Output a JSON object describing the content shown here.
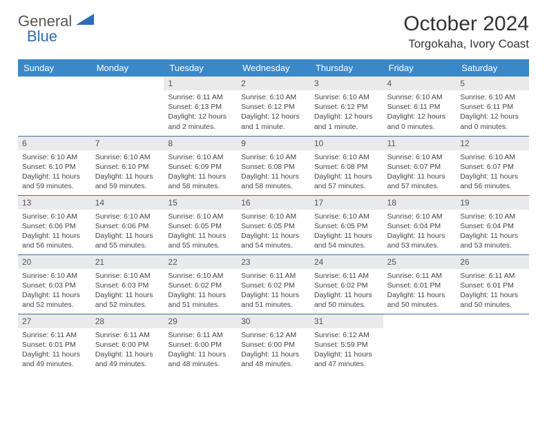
{
  "logo": {
    "general": "General",
    "blue": "Blue",
    "shape_color": "#2d6db3"
  },
  "title": "October 2024",
  "location": "Torgokaha, Ivory Coast",
  "columns": [
    "Sunday",
    "Monday",
    "Tuesday",
    "Wednesday",
    "Thursday",
    "Friday",
    "Saturday"
  ],
  "colors": {
    "header_bg": "#3b88c9",
    "header_text": "#ffffff",
    "daynum_bg": "#e9eaec",
    "rule": "#3b6fa0",
    "body_text": "#444444"
  },
  "weeks": [
    [
      null,
      null,
      {
        "n": "1",
        "sr": "6:11 AM",
        "ss": "6:13 PM",
        "dl": "12 hours and 2 minutes."
      },
      {
        "n": "2",
        "sr": "6:10 AM",
        "ss": "6:12 PM",
        "dl": "12 hours and 1 minute."
      },
      {
        "n": "3",
        "sr": "6:10 AM",
        "ss": "6:12 PM",
        "dl": "12 hours and 1 minute."
      },
      {
        "n": "4",
        "sr": "6:10 AM",
        "ss": "6:11 PM",
        "dl": "12 hours and 0 minutes."
      },
      {
        "n": "5",
        "sr": "6:10 AM",
        "ss": "6:11 PM",
        "dl": "12 hours and 0 minutes."
      }
    ],
    [
      {
        "n": "6",
        "sr": "6:10 AM",
        "ss": "6:10 PM",
        "dl": "11 hours and 59 minutes."
      },
      {
        "n": "7",
        "sr": "6:10 AM",
        "ss": "6:10 PM",
        "dl": "11 hours and 59 minutes."
      },
      {
        "n": "8",
        "sr": "6:10 AM",
        "ss": "6:09 PM",
        "dl": "11 hours and 58 minutes."
      },
      {
        "n": "9",
        "sr": "6:10 AM",
        "ss": "6:08 PM",
        "dl": "11 hours and 58 minutes."
      },
      {
        "n": "10",
        "sr": "6:10 AM",
        "ss": "6:08 PM",
        "dl": "11 hours and 57 minutes."
      },
      {
        "n": "11",
        "sr": "6:10 AM",
        "ss": "6:07 PM",
        "dl": "11 hours and 57 minutes."
      },
      {
        "n": "12",
        "sr": "6:10 AM",
        "ss": "6:07 PM",
        "dl": "11 hours and 56 minutes."
      }
    ],
    [
      {
        "n": "13",
        "sr": "6:10 AM",
        "ss": "6:06 PM",
        "dl": "11 hours and 56 minutes."
      },
      {
        "n": "14",
        "sr": "6:10 AM",
        "ss": "6:06 PM",
        "dl": "11 hours and 55 minutes."
      },
      {
        "n": "15",
        "sr": "6:10 AM",
        "ss": "6:05 PM",
        "dl": "11 hours and 55 minutes."
      },
      {
        "n": "16",
        "sr": "6:10 AM",
        "ss": "6:05 PM",
        "dl": "11 hours and 54 minutes."
      },
      {
        "n": "17",
        "sr": "6:10 AM",
        "ss": "6:05 PM",
        "dl": "11 hours and 54 minutes."
      },
      {
        "n": "18",
        "sr": "6:10 AM",
        "ss": "6:04 PM",
        "dl": "11 hours and 53 minutes."
      },
      {
        "n": "19",
        "sr": "6:10 AM",
        "ss": "6:04 PM",
        "dl": "11 hours and 53 minutes."
      }
    ],
    [
      {
        "n": "20",
        "sr": "6:10 AM",
        "ss": "6:03 PM",
        "dl": "11 hours and 52 minutes."
      },
      {
        "n": "21",
        "sr": "6:10 AM",
        "ss": "6:03 PM",
        "dl": "11 hours and 52 minutes."
      },
      {
        "n": "22",
        "sr": "6:10 AM",
        "ss": "6:02 PM",
        "dl": "11 hours and 51 minutes."
      },
      {
        "n": "23",
        "sr": "6:11 AM",
        "ss": "6:02 PM",
        "dl": "11 hours and 51 minutes."
      },
      {
        "n": "24",
        "sr": "6:11 AM",
        "ss": "6:02 PM",
        "dl": "11 hours and 50 minutes."
      },
      {
        "n": "25",
        "sr": "6:11 AM",
        "ss": "6:01 PM",
        "dl": "11 hours and 50 minutes."
      },
      {
        "n": "26",
        "sr": "6:11 AM",
        "ss": "6:01 PM",
        "dl": "11 hours and 50 minutes."
      }
    ],
    [
      {
        "n": "27",
        "sr": "6:11 AM",
        "ss": "6:01 PM",
        "dl": "11 hours and 49 minutes."
      },
      {
        "n": "28",
        "sr": "6:11 AM",
        "ss": "6:00 PM",
        "dl": "11 hours and 49 minutes."
      },
      {
        "n": "29",
        "sr": "6:11 AM",
        "ss": "6:00 PM",
        "dl": "11 hours and 48 minutes."
      },
      {
        "n": "30",
        "sr": "6:12 AM",
        "ss": "6:00 PM",
        "dl": "11 hours and 48 minutes."
      },
      {
        "n": "31",
        "sr": "6:12 AM",
        "ss": "5:59 PM",
        "dl": "11 hours and 47 minutes."
      },
      null,
      null
    ]
  ]
}
